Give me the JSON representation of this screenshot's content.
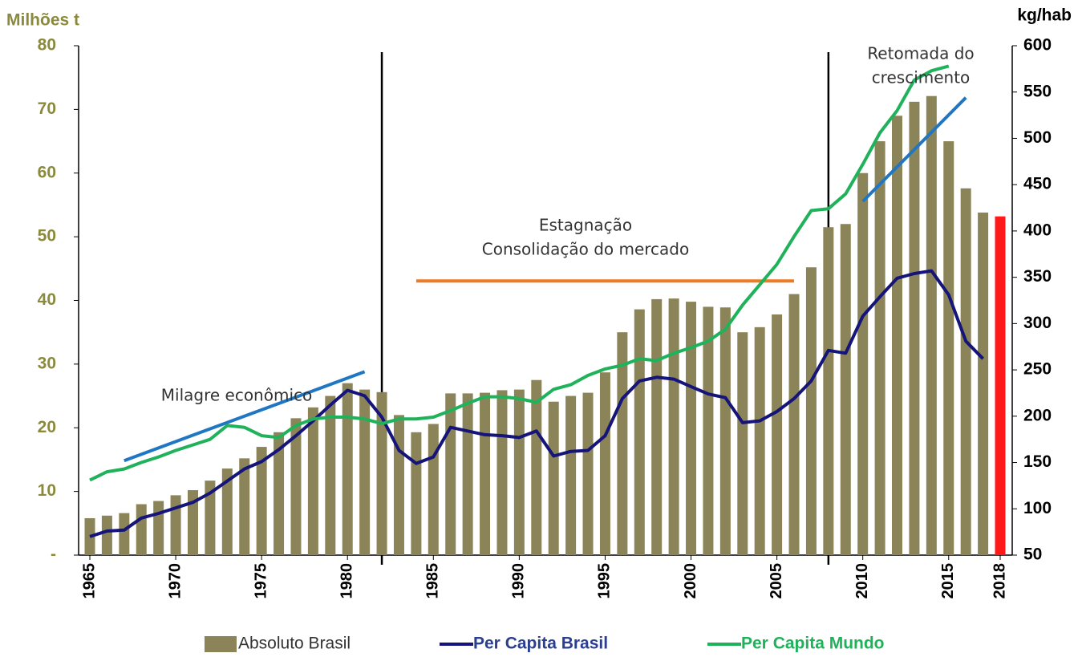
{
  "chart_data": {
    "type": "bar_line",
    "ylabel": "Milhões t",
    "y2label": "kg/hab",
    "x": [
      1965,
      1966,
      1967,
      1968,
      1969,
      1970,
      1971,
      1972,
      1973,
      1974,
      1975,
      1976,
      1977,
      1978,
      1979,
      1980,
      1981,
      1982,
      1983,
      1984,
      1985,
      1986,
      1987,
      1988,
      1989,
      1990,
      1991,
      1992,
      1993,
      1994,
      1995,
      1996,
      1997,
      1998,
      1999,
      2000,
      2001,
      2002,
      2003,
      2004,
      2005,
      2006,
      2007,
      2008,
      2009,
      2010,
      2011,
      2012,
      2013,
      2014,
      2015,
      2016,
      2017,
      2018
    ],
    "xlim": [
      1965,
      2018
    ],
    "xticks": [
      1965,
      1970,
      1975,
      1980,
      1985,
      1990,
      1995,
      2000,
      2005,
      2010,
      2015,
      2018
    ],
    "ylim": [
      0,
      80
    ],
    "yticks": [
      {
        "value": 0,
        "label": "-"
      },
      10,
      20,
      30,
      40,
      50,
      60,
      70,
      80
    ],
    "y2lim": [
      50,
      600
    ],
    "y2ticks": [
      50,
      100,
      150,
      200,
      250,
      300,
      350,
      400,
      450,
      500,
      550,
      600
    ],
    "series": [
      {
        "name": "Absoluto Brasil",
        "kind": "bar",
        "color": "#8c8459",
        "highlight_color": "#ff1a1a",
        "highlight": 2018,
        "values": [
          5.8,
          6.2,
          6.6,
          8.0,
          8.5,
          9.4,
          10.2,
          11.7,
          13.6,
          15.2,
          17.0,
          19.3,
          21.5,
          23.2,
          25.0,
          27.0,
          26.0,
          25.6,
          22.0,
          19.3,
          20.6,
          25.4,
          25.4,
          25.5,
          25.9,
          26.0,
          27.5,
          24.1,
          25.0,
          25.5,
          28.7,
          35.0,
          38.6,
          40.2,
          40.3,
          39.8,
          39.0,
          38.9,
          35.0,
          35.8,
          37.8,
          41.0,
          45.2,
          51.5,
          52.0,
          60.0,
          65.0,
          69.0,
          71.2,
          72.1,
          65.0,
          57.6,
          53.8,
          53.2
        ]
      },
      {
        "name": "Per Capita Brasil",
        "kind": "line",
        "axis": "y2",
        "color": "#14147a",
        "values": [
          70,
          76,
          77,
          90,
          95,
          101,
          107,
          117,
          130,
          143,
          151,
          164,
          179,
          195,
          212,
          228,
          222,
          199,
          163,
          149,
          156,
          188,
          184,
          180,
          179,
          177,
          184,
          157,
          162,
          163,
          179,
          219,
          238,
          242,
          240,
          232,
          224,
          220,
          193,
          195,
          205,
          219,
          238,
          271,
          268,
          308,
          329,
          349,
          354,
          357,
          331,
          281,
          262,
          null
        ]
      },
      {
        "name": "Per Capita Mundo",
        "kind": "line",
        "axis": "y2",
        "color": "#1fb25a",
        "values": [
          131,
          140,
          143,
          150,
          156,
          163,
          169,
          175,
          190,
          188,
          179,
          177,
          190,
          197,
          199,
          199,
          197,
          192,
          197,
          197,
          199,
          206,
          214,
          221,
          221,
          219,
          215,
          229,
          234,
          244,
          251,
          255,
          262,
          260,
          268,
          274,
          281,
          294,
          320,
          342,
          364,
          394,
          422,
          424,
          440,
          472,
          506,
          530,
          563,
          573,
          578,
          null,
          null,
          null
        ]
      }
    ],
    "trend_lines": [
      {
        "x": [
          1967,
          1981
        ],
        "values": [
          152,
          248
        ],
        "axis": "y2",
        "color": "#1f77c4"
      },
      {
        "x": [
          1984,
          2006
        ],
        "values": [
          346,
          346
        ],
        "axis": "y2",
        "color": "#ee7a22"
      },
      {
        "x": [
          2010,
          2016
        ],
        "values": [
          432,
          544
        ],
        "axis": "y2",
        "color": "#1f77c4"
      }
    ],
    "vlines": [
      1982,
      2008
    ],
    "annotations": [
      "Milagre econômico",
      "Estagnação",
      "Consolidação do mercado",
      "Retomada do",
      "crescimento"
    ]
  }
}
